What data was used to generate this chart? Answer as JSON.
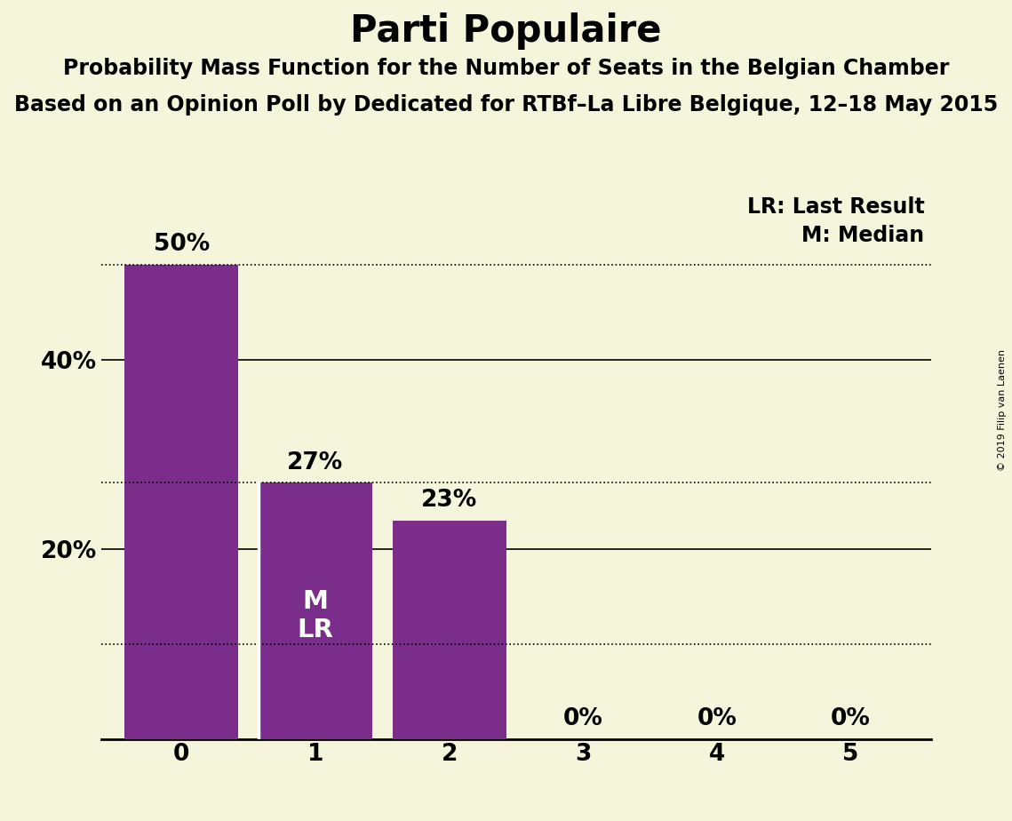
{
  "title": "Parti Populaire",
  "subtitle1": "Probability Mass Function for the Number of Seats in the Belgian Chamber",
  "subtitle2": "Based on an Opinion Poll by Dedicated for RTBf–La Libre Belgique, 12–18 May 2015",
  "copyright": "© 2019 Filip van Laenen",
  "categories": [
    0,
    1,
    2,
    3,
    4,
    5
  ],
  "values": [
    0.5,
    0.27,
    0.23,
    0.0,
    0.0,
    0.0
  ],
  "bar_color": "#7B2D8B",
  "background_color": "#F5F5DC",
  "bar_labels": [
    "50%",
    "27%",
    "23%",
    "0%",
    "0%",
    "0%"
  ],
  "dotted_lines": [
    0.5,
    0.27,
    0.1
  ],
  "solid_lines": [
    0.4,
    0.2
  ],
  "ylim": [
    0,
    0.58
  ],
  "yticks": [
    0.2,
    0.4
  ],
  "ytick_labels": [
    "20%",
    "40%"
  ],
  "legend_lr": "LR: Last Result",
  "legend_m": "M: Median",
  "title_fontsize": 30,
  "subtitle_fontsize": 17,
  "tick_fontsize": 19,
  "bar_label_fontsize": 19,
  "ml_fontsize": 21
}
